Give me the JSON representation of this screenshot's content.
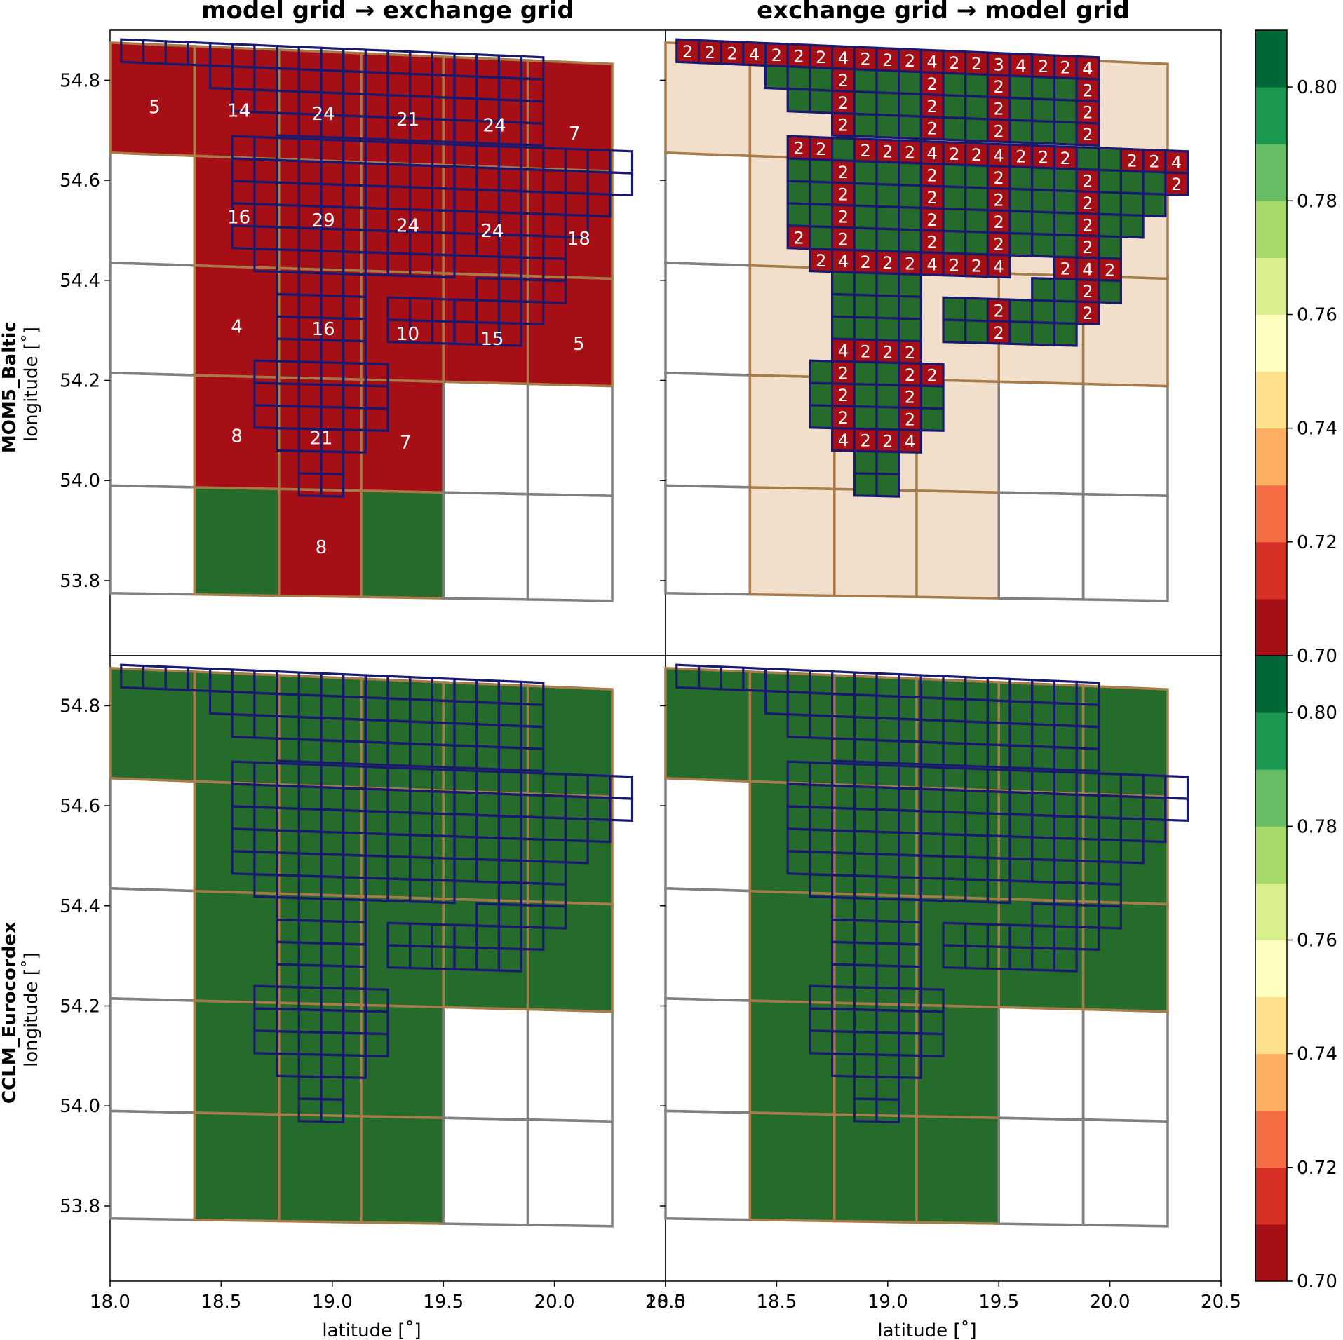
{
  "column_titles": [
    "model grid → exchange grid",
    "exchange grid → model grid"
  ],
  "row_labels": [
    {
      "name": "MOM5_Baltic",
      "axis": "longitude [˚]"
    },
    {
      "name": "CCLM_Eurocordex",
      "axis": "longitude [˚]"
    }
  ],
  "x_axis_label": "latitude [˚]",
  "colors": {
    "red": "#a50f15",
    "green": "#246b2c",
    "peach": "#f2dfcb",
    "model_edge": "#a87c4a",
    "exchange_edge": "#191970",
    "empty_edge": "#808080"
  },
  "colorbar": {
    "ticks": [
      "0.70",
      "0.72",
      "0.74",
      "0.76",
      "0.78",
      "0.80"
    ],
    "min": 0.7,
    "max": 0.81,
    "colors": [
      "#a50f15",
      "#d73027",
      "#f46d43",
      "#fdae61",
      "#fee08b",
      "#ffffbf",
      "#d9ef8b",
      "#a6d96a",
      "#66bd63",
      "#1a9850",
      "#006837"
    ]
  },
  "chart_data": {
    "type": "heatmap",
    "xlabel": "latitude [˚]",
    "xlim": [
      18.0,
      20.5
    ],
    "ylim": [
      53.65,
      54.9
    ],
    "xticks": [
      18.0,
      18.5,
      19.0,
      19.5,
      20.0,
      20.5
    ],
    "xtick_labels": [
      "18.0",
      "18.5",
      "19.0",
      "19.5",
      "20.0",
      "20.5"
    ],
    "yticks": [
      53.8,
      54.0,
      54.2,
      54.4,
      54.6,
      54.8
    ],
    "ytick_labels": [
      "53.8",
      "54.0",
      "54.2",
      "54.4",
      "54.6",
      "54.8"
    ],
    "panels": [
      {
        "row": "MOM5_Baltic",
        "column": "model grid → exchange grid",
        "fill": "red",
        "overlap_counts": [
          {
            "lon": 18.2,
            "lat": 54.75,
            "value": "5"
          },
          {
            "lon": 18.58,
            "lat": 54.75,
            "value": "14"
          },
          {
            "lon": 18.96,
            "lat": 54.75,
            "value": "24"
          },
          {
            "lon": 19.34,
            "lat": 54.745,
            "value": "21"
          },
          {
            "lon": 19.73,
            "lat": 54.74,
            "value": "24"
          },
          {
            "lon": 20.09,
            "lat": 54.73,
            "value": "7"
          },
          {
            "lon": 18.58,
            "lat": 54.535,
            "value": "16"
          },
          {
            "lon": 18.96,
            "lat": 54.535,
            "value": "29"
          },
          {
            "lon": 19.34,
            "lat": 54.53,
            "value": "24"
          },
          {
            "lon": 19.72,
            "lat": 54.525,
            "value": "24"
          },
          {
            "lon": 20.11,
            "lat": 54.515,
            "value": "18"
          },
          {
            "lon": 18.57,
            "lat": 54.315,
            "value": "4"
          },
          {
            "lon": 18.96,
            "lat": 54.315,
            "value": "16"
          },
          {
            "lon": 19.34,
            "lat": 54.31,
            "value": "10"
          },
          {
            "lon": 19.72,
            "lat": 54.305,
            "value": "15"
          },
          {
            "lon": 20.11,
            "lat": 54.3,
            "value": "5"
          },
          {
            "lon": 18.57,
            "lat": 54.095,
            "value": "8"
          },
          {
            "lon": 18.95,
            "lat": 54.095,
            "value": "21"
          },
          {
            "lon": 19.33,
            "lat": 54.09,
            "value": "7"
          },
          {
            "lon": 18.95,
            "lat": 53.875,
            "value": "8"
          }
        ]
      },
      {
        "row": "MOM5_Baltic",
        "column": "exchange grid → model grid",
        "fill": "peach",
        "cell_labels": [
          {
            "lon": 18.1,
            "lat": 54.86,
            "value": "2"
          },
          {
            "lon": 18.2,
            "lat": 54.86,
            "value": "2"
          },
          {
            "lon": 18.3,
            "lat": 54.86,
            "value": "2"
          },
          {
            "lon": 18.4,
            "lat": 54.86,
            "value": "4"
          },
          {
            "lon": 18.5,
            "lat": 54.86,
            "value": "2"
          },
          {
            "lon": 18.6,
            "lat": 54.86,
            "value": "2"
          },
          {
            "lon": 18.7,
            "lat": 54.86,
            "value": "2"
          },
          {
            "lon": 18.8,
            "lat": 54.86,
            "value": "4"
          },
          {
            "lon": 18.9,
            "lat": 54.86,
            "value": "2"
          },
          {
            "lon": 19.0,
            "lat": 54.86,
            "value": "2"
          },
          {
            "lon": 19.1,
            "lat": 54.86,
            "value": "2"
          },
          {
            "lon": 19.2,
            "lat": 54.86,
            "value": "4"
          },
          {
            "lon": 19.3,
            "lat": 54.86,
            "value": "2"
          },
          {
            "lon": 19.4,
            "lat": 54.86,
            "value": "2"
          },
          {
            "lon": 19.5,
            "lat": 54.86,
            "value": "3"
          },
          {
            "lon": 19.6,
            "lat": 54.86,
            "value": "4"
          },
          {
            "lon": 19.7,
            "lat": 54.86,
            "value": "2"
          },
          {
            "lon": 19.8,
            "lat": 54.86,
            "value": "2"
          },
          {
            "lon": 19.9,
            "lat": 54.86,
            "value": "4"
          },
          {
            "lon": 18.8,
            "lat": 54.815,
            "value": "2"
          },
          {
            "lon": 19.2,
            "lat": 54.815,
            "value": "2"
          },
          {
            "lon": 19.5,
            "lat": 54.815,
            "value": "2"
          },
          {
            "lon": 19.9,
            "lat": 54.815,
            "value": "2"
          },
          {
            "lon": 18.8,
            "lat": 54.77,
            "value": "2"
          },
          {
            "lon": 19.2,
            "lat": 54.77,
            "value": "2"
          },
          {
            "lon": 19.5,
            "lat": 54.77,
            "value": "2"
          },
          {
            "lon": 19.9,
            "lat": 54.77,
            "value": "2"
          },
          {
            "lon": 18.8,
            "lat": 54.725,
            "value": "2"
          },
          {
            "lon": 19.2,
            "lat": 54.725,
            "value": "2"
          },
          {
            "lon": 19.5,
            "lat": 54.725,
            "value": "2"
          },
          {
            "lon": 19.9,
            "lat": 54.725,
            "value": "2"
          },
          {
            "lon": 18.6,
            "lat": 54.675,
            "value": "2"
          },
          {
            "lon": 18.7,
            "lat": 54.675,
            "value": "2"
          },
          {
            "lon": 18.9,
            "lat": 54.675,
            "value": "2"
          },
          {
            "lon": 19.0,
            "lat": 54.675,
            "value": "2"
          },
          {
            "lon": 19.1,
            "lat": 54.675,
            "value": "2"
          },
          {
            "lon": 19.2,
            "lat": 54.675,
            "value": "4"
          },
          {
            "lon": 19.3,
            "lat": 54.675,
            "value": "2"
          },
          {
            "lon": 19.4,
            "lat": 54.675,
            "value": "2"
          },
          {
            "lon": 19.5,
            "lat": 54.675,
            "value": "4"
          },
          {
            "lon": 19.6,
            "lat": 54.675,
            "value": "2"
          },
          {
            "lon": 19.7,
            "lat": 54.675,
            "value": "2"
          },
          {
            "lon": 19.8,
            "lat": 54.675,
            "value": "2"
          },
          {
            "lon": 20.1,
            "lat": 54.675,
            "value": "2"
          },
          {
            "lon": 20.2,
            "lat": 54.675,
            "value": "2"
          },
          {
            "lon": 20.3,
            "lat": 54.675,
            "value": "4"
          },
          {
            "lon": 18.8,
            "lat": 54.63,
            "value": "2"
          },
          {
            "lon": 19.2,
            "lat": 54.63,
            "value": "2"
          },
          {
            "lon": 19.5,
            "lat": 54.63,
            "value": "2"
          },
          {
            "lon": 19.9,
            "lat": 54.63,
            "value": "2"
          },
          {
            "lon": 20.3,
            "lat": 54.63,
            "value": "2"
          },
          {
            "lon": 18.8,
            "lat": 54.585,
            "value": "2"
          },
          {
            "lon": 19.2,
            "lat": 54.585,
            "value": "2"
          },
          {
            "lon": 19.5,
            "lat": 54.585,
            "value": "2"
          },
          {
            "lon": 19.9,
            "lat": 54.585,
            "value": "2"
          },
          {
            "lon": 18.8,
            "lat": 54.54,
            "value": "2"
          },
          {
            "lon": 19.2,
            "lat": 54.54,
            "value": "2"
          },
          {
            "lon": 19.5,
            "lat": 54.54,
            "value": "2"
          },
          {
            "lon": 19.9,
            "lat": 54.54,
            "value": "2"
          },
          {
            "lon": 18.6,
            "lat": 54.495,
            "value": "2"
          },
          {
            "lon": 18.8,
            "lat": 54.495,
            "value": "2"
          },
          {
            "lon": 19.2,
            "lat": 54.495,
            "value": "2"
          },
          {
            "lon": 19.5,
            "lat": 54.495,
            "value": "2"
          },
          {
            "lon": 19.9,
            "lat": 54.495,
            "value": "2"
          },
          {
            "lon": 18.7,
            "lat": 54.45,
            "value": "2"
          },
          {
            "lon": 18.8,
            "lat": 54.45,
            "value": "4"
          },
          {
            "lon": 18.9,
            "lat": 54.45,
            "value": "2"
          },
          {
            "lon": 19.0,
            "lat": 54.45,
            "value": "2"
          },
          {
            "lon": 19.1,
            "lat": 54.45,
            "value": "2"
          },
          {
            "lon": 19.2,
            "lat": 54.45,
            "value": "4"
          },
          {
            "lon": 19.3,
            "lat": 54.45,
            "value": "2"
          },
          {
            "lon": 19.4,
            "lat": 54.45,
            "value": "2"
          },
          {
            "lon": 19.5,
            "lat": 54.45,
            "value": "4"
          },
          {
            "lon": 19.8,
            "lat": 54.45,
            "value": "2"
          },
          {
            "lon": 19.9,
            "lat": 54.45,
            "value": "4"
          },
          {
            "lon": 20.0,
            "lat": 54.45,
            "value": "2"
          },
          {
            "lon": 19.9,
            "lat": 54.405,
            "value": "2"
          },
          {
            "lon": 19.5,
            "lat": 54.36,
            "value": "2"
          },
          {
            "lon": 19.9,
            "lat": 54.36,
            "value": "2"
          },
          {
            "lon": 19.5,
            "lat": 54.315,
            "value": "2"
          },
          {
            "lon": 18.8,
            "lat": 54.27,
            "value": "4"
          },
          {
            "lon": 18.9,
            "lat": 54.27,
            "value": "2"
          },
          {
            "lon": 19.0,
            "lat": 54.27,
            "value": "2"
          },
          {
            "lon": 19.1,
            "lat": 54.27,
            "value": "2"
          },
          {
            "lon": 18.8,
            "lat": 54.225,
            "value": "2"
          },
          {
            "lon": 19.1,
            "lat": 54.225,
            "value": "2"
          },
          {
            "lon": 19.2,
            "lat": 54.225,
            "value": "2"
          },
          {
            "lon": 18.8,
            "lat": 54.18,
            "value": "2"
          },
          {
            "lon": 19.1,
            "lat": 54.18,
            "value": "2"
          },
          {
            "lon": 18.8,
            "lat": 54.135,
            "value": "2"
          },
          {
            "lon": 19.1,
            "lat": 54.135,
            "value": "2"
          },
          {
            "lon": 18.8,
            "lat": 54.09,
            "value": "4"
          },
          {
            "lon": 18.9,
            "lat": 54.09,
            "value": "2"
          },
          {
            "lon": 19.0,
            "lat": 54.09,
            "value": "2"
          },
          {
            "lon": 19.1,
            "lat": 54.09,
            "value": "4"
          }
        ]
      },
      {
        "row": "CCLM_Eurocordex",
        "column": "model grid → exchange grid",
        "fill": "green"
      },
      {
        "row": "CCLM_Eurocordex",
        "column": "exchange grid → model grid",
        "fill": "green"
      }
    ]
  }
}
